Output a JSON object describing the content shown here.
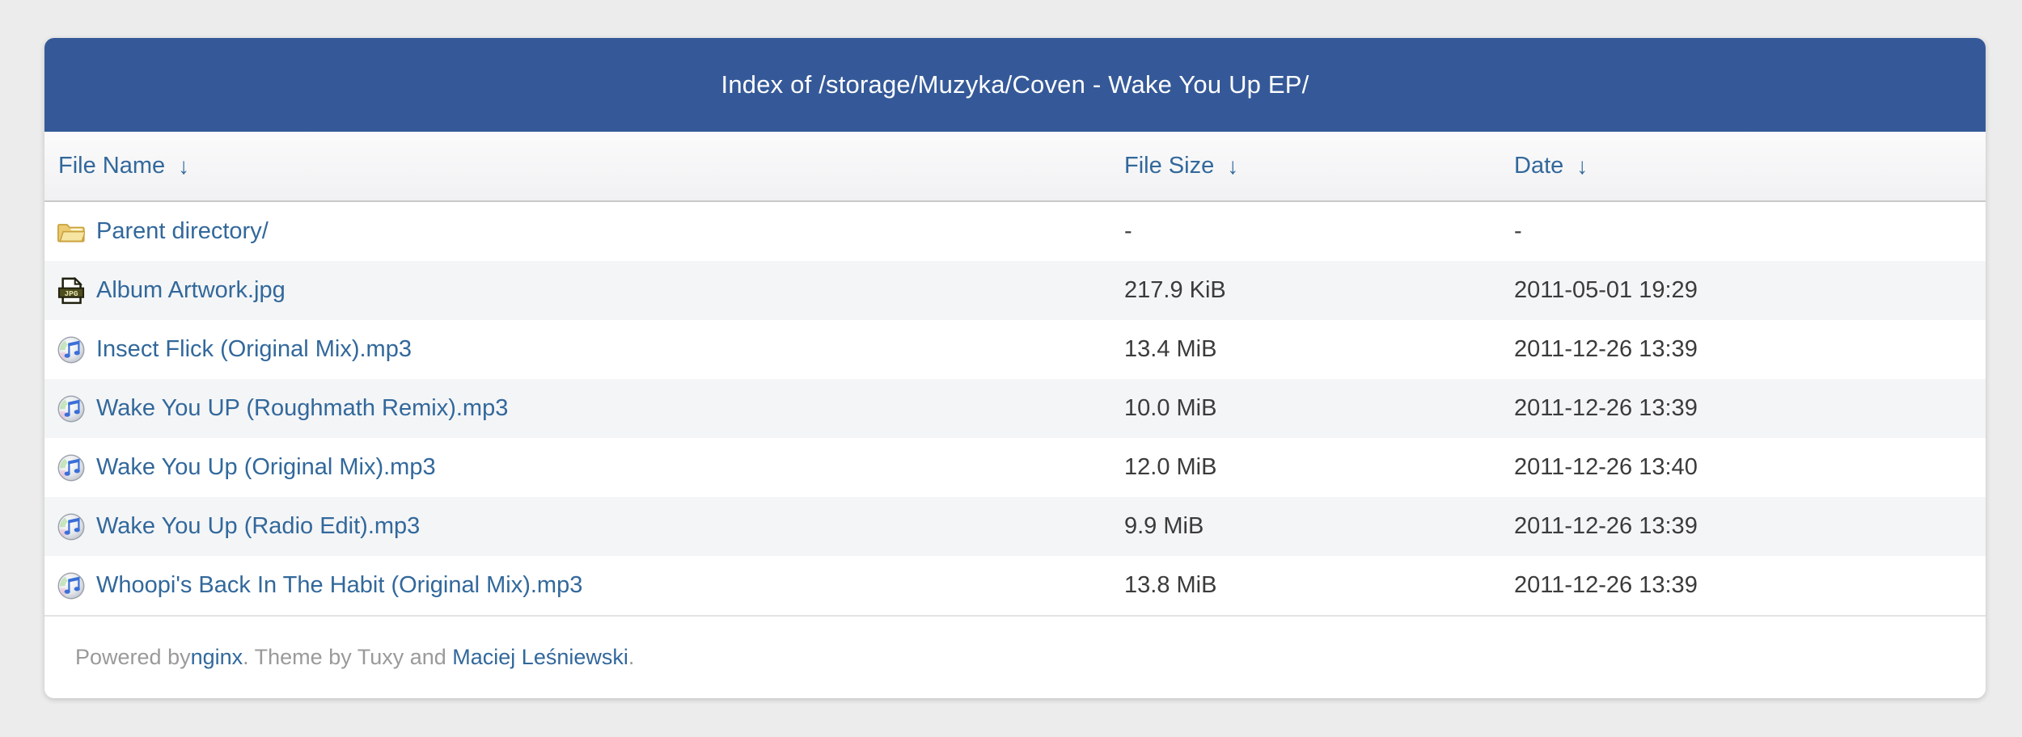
{
  "colors": {
    "page_bg": "#ececec",
    "header_bg": "#355998",
    "link": "#32689b",
    "body_text": "#3b3b3b",
    "stripe": "#f4f5f7",
    "footer_text": "#9a9a9a"
  },
  "header": {
    "title": "Index of /storage/Muzyka/Coven - Wake You Up EP/"
  },
  "columns": {
    "name_label": "File Name",
    "size_label": "File Size",
    "date_label": "Date",
    "sort_arrow": "↓"
  },
  "rows": [
    {
      "icon": "folder-icon",
      "name": "Parent directory/",
      "size": "-",
      "date": "-"
    },
    {
      "icon": "jpg-file-icon",
      "name": "Album Artwork.jpg",
      "size": "217.9 KiB",
      "date": "2011-05-01 19:29"
    },
    {
      "icon": "music-file-icon",
      "name": "Insect Flick (Original Mix).mp3",
      "size": "13.4 MiB",
      "date": "2011-12-26 13:39"
    },
    {
      "icon": "music-file-icon",
      "name": "Wake You UP (Roughmath Remix).mp3",
      "size": "10.0 MiB",
      "date": "2011-12-26 13:39"
    },
    {
      "icon": "music-file-icon",
      "name": "Wake You Up (Original Mix).mp3",
      "size": "12.0 MiB",
      "date": "2011-12-26 13:40"
    },
    {
      "icon": "music-file-icon",
      "name": "Wake You Up (Radio Edit).mp3",
      "size": "9.9 MiB",
      "date": "2011-12-26 13:39"
    },
    {
      "icon": "music-file-icon",
      "name": "Whoopi's Back In The Habit (Original Mix).mp3",
      "size": "13.8 MiB",
      "date": "2011-12-26 13:39"
    }
  ],
  "footer": {
    "powered_prefix": "Powered by ",
    "nginx_link": "nginx",
    "middle": ". Theme by Tuxy and ",
    "author_link": "Maciej Leśniewski",
    "suffix": "."
  }
}
